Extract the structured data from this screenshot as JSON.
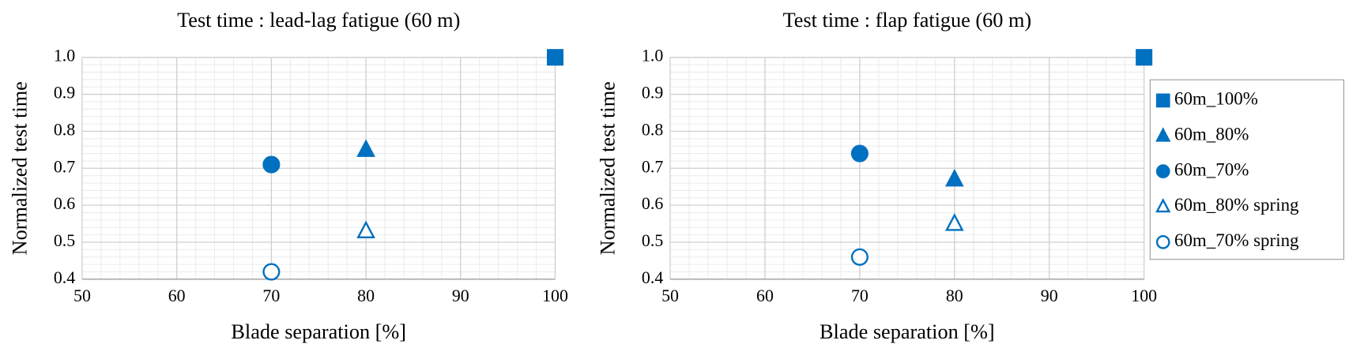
{
  "chart_data": [
    {
      "type": "scatter",
      "title": "Test time : lead-lag fatigue (60 m)",
      "x_label": "Blade separation [%]",
      "y_label": "Normalized test time",
      "xlim": [
        50,
        100
      ],
      "xticks": [
        50,
        60,
        70,
        80,
        90,
        100
      ],
      "ylim": [
        0.4,
        1
      ],
      "yticks": [
        0.4,
        0.5,
        0.6,
        0.7,
        0.8,
        0.9,
        {
          "value": 1,
          "label": "1.0"
        }
      ],
      "grid": true,
      "minor_grid": true,
      "series": [
        {
          "name": "60m_100%",
          "color": "#0070c0",
          "marker": "square",
          "filled": true,
          "x": [
            100
          ],
          "values": [
            1
          ]
        },
        {
          "name": "60m_80%",
          "color": "#0070c0",
          "marker": "triangle",
          "filled": true,
          "x": [
            80
          ],
          "values": [
            0.75
          ]
        },
        {
          "name": "60m_70%",
          "color": "#0070c0",
          "marker": "circle",
          "filled": true,
          "x": [
            70
          ],
          "values": [
            0.71
          ]
        },
        {
          "name": "60m_80% spring",
          "color": "#0070c0",
          "marker": "triangle",
          "filled": false,
          "x": [
            80
          ],
          "values": [
            0.53
          ]
        },
        {
          "name": "60m_70% spring",
          "color": "#0070c0",
          "marker": "circle",
          "filled": false,
          "x": [
            70
          ],
          "values": [
            0.42
          ]
        }
      ]
    },
    {
      "type": "scatter",
      "title": "Test time : flap fatigue (60 m)",
      "x_label": "Blade separation [%]",
      "y_label": "Normalized test time",
      "xlim": [
        50,
        100
      ],
      "xticks": [
        50,
        60,
        70,
        80,
        90,
        100
      ],
      "ylim": [
        0.4,
        1
      ],
      "yticks": [
        0.4,
        0.5,
        0.6,
        0.7,
        0.8,
        0.9,
        {
          "value": 1,
          "label": "1.0"
        }
      ],
      "grid": true,
      "minor_grid": true,
      "legend": "right",
      "series": [
        {
          "name": "60m_100%",
          "color": "#0070c0",
          "marker": "square",
          "filled": true,
          "x": [
            100
          ],
          "values": [
            1
          ]
        },
        {
          "name": "60m_80%",
          "color": "#0070c0",
          "marker": "triangle",
          "filled": true,
          "x": [
            80
          ],
          "values": [
            0.67
          ]
        },
        {
          "name": "60m_70%",
          "color": "#0070c0",
          "marker": "circle",
          "filled": true,
          "x": [
            70
          ],
          "values": [
            0.74
          ]
        },
        {
          "name": "60m_80% spring",
          "color": "#0070c0",
          "marker": "triangle",
          "filled": false,
          "x": [
            80
          ],
          "values": [
            0.55
          ]
        },
        {
          "name": "60m_70% spring",
          "color": "#0070c0",
          "marker": "circle",
          "filled": false,
          "x": [
            70
          ],
          "values": [
            0.46
          ]
        }
      ]
    }
  ]
}
